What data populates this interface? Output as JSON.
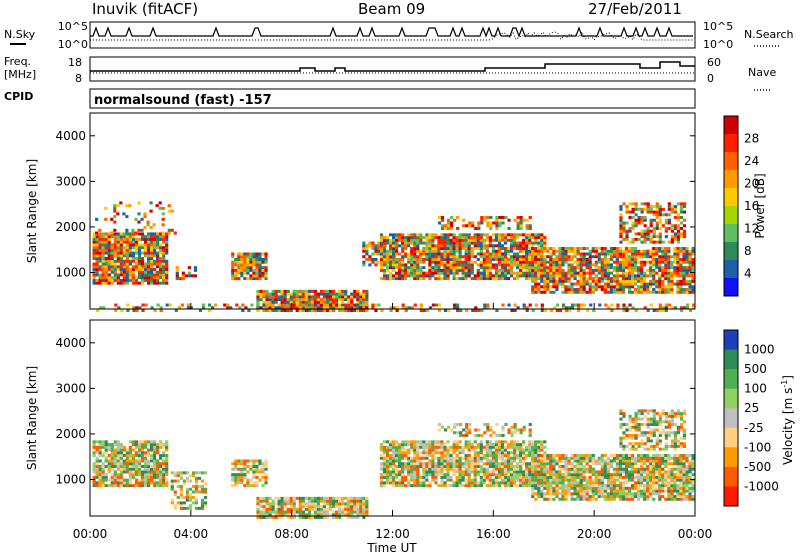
{
  "header": {
    "station": "Inuvik (fitACF)",
    "beam": "Beam 09",
    "date": "27/Feb/2011",
    "mode": "normalsound (fast) -157"
  },
  "chart_data": [
    {
      "type": "line",
      "name": "noise-panel",
      "left_label": "N.Sky",
      "right_label": "N.Search",
      "left_ticks": [
        "10^5",
        "10^0"
      ],
      "right_ticks": [
        "10^5",
        "10^0"
      ]
    },
    {
      "type": "line",
      "name": "frequency-panel",
      "left_label_lines": [
        "Freq.",
        "[MHz]"
      ],
      "right_label": "Nave",
      "left_ticks": [
        "18",
        "8"
      ],
      "right_ticks": [
        "60",
        "0"
      ],
      "cpid_label": "CPID"
    },
    {
      "type": "heatmap",
      "name": "power-panel",
      "ylabel": "Slant Range [km]",
      "ylim": [
        200,
        4500
      ],
      "yticks": [
        1000,
        2000,
        3000,
        4000
      ],
      "xlim_hours": [
        0,
        24
      ],
      "colorbar": {
        "label": "Power [dB]",
        "ticks": [
          "28",
          "24",
          "20",
          "16",
          "12",
          "8",
          "4"
        ],
        "colors": [
          "#d00000",
          "#ff2000",
          "#ff6000",
          "#ff9a00",
          "#ffc800",
          "#a6d400",
          "#5fbf5f",
          "#2e8b57",
          "#1e5fa8",
          "#1010ff"
        ]
      }
    },
    {
      "type": "heatmap",
      "name": "velocity-panel",
      "ylabel": "Slant Range [km]",
      "ylim": [
        200,
        4500
      ],
      "yticks": [
        1000,
        2000,
        3000,
        4000
      ],
      "xlim_hours": [
        0,
        24
      ],
      "xlabel": "Time UT",
      "xticks": [
        "00:00",
        "04:00",
        "08:00",
        "12:00",
        "16:00",
        "20:00",
        "00:00"
      ],
      "colorbar": {
        "label": "Velocity [m s",
        "label_sup": "-1",
        "ticks": [
          "1000",
          "500",
          "100",
          "25",
          "-25",
          "-100",
          "-500",
          "-1000"
        ],
        "colors": [
          "#1d3fb8",
          "#2f8b57",
          "#4fb04f",
          "#90d060",
          "#bfbfbf",
          "#ffd080",
          "#ff9a00",
          "#ff5a00",
          "#ff1a00"
        ]
      }
    }
  ]
}
